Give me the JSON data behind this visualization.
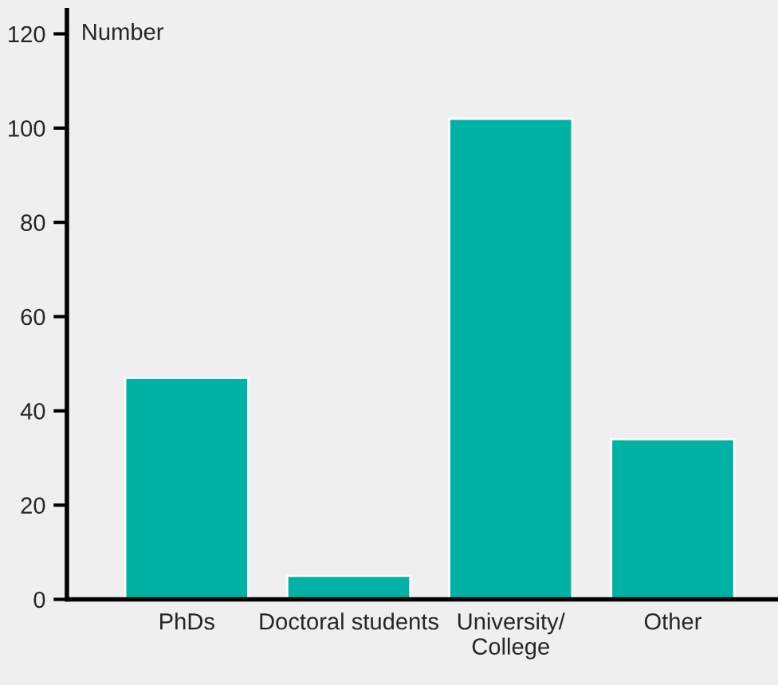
{
  "chart_data": {
    "type": "bar",
    "ylabel": "Number",
    "categories": [
      "PhDs",
      "Doctoral students",
      "University/\nCollege",
      "Other"
    ],
    "values": [
      47,
      5,
      102,
      34
    ],
    "color": "#00b2a4",
    "ylim": [
      0,
      125
    ],
    "yticks": [
      0,
      20,
      40,
      60,
      80,
      100,
      120
    ],
    "grid": false
  }
}
